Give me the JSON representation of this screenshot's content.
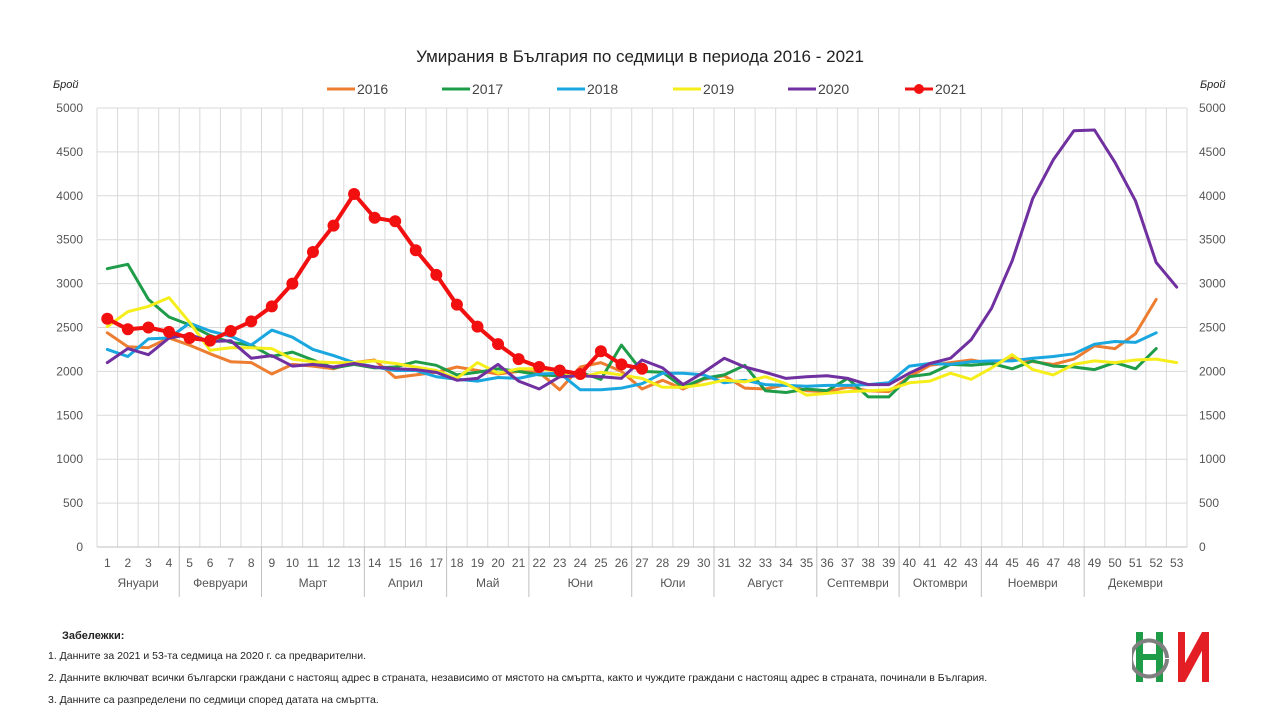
{
  "chart_data": {
    "type": "line",
    "title": "Умирания в България по седмици в периода 2016 - 2021",
    "ylabel_left": "Брой",
    "ylabel_right": "Брой",
    "ylim": [
      0,
      5000
    ],
    "yticks": [
      0,
      500,
      1000,
      1500,
      2000,
      2500,
      3000,
      3500,
      4000,
      4500,
      5000
    ],
    "x": [
      1,
      2,
      3,
      4,
      5,
      6,
      7,
      8,
      9,
      10,
      11,
      12,
      13,
      14,
      15,
      16,
      17,
      18,
      19,
      20,
      21,
      22,
      23,
      24,
      25,
      26,
      27,
      28,
      29,
      30,
      31,
      32,
      33,
      34,
      35,
      36,
      37,
      38,
      39,
      40,
      41,
      42,
      43,
      44,
      45,
      46,
      47,
      48,
      49,
      50,
      51,
      52,
      53
    ],
    "months": [
      {
        "label": "Януари",
        "from": 1,
        "to": 4
      },
      {
        "label": "Февруари",
        "from": 5,
        "to": 8
      },
      {
        "label": "Март",
        "from": 9,
        "to": 13
      },
      {
        "label": "Април",
        "from": 14,
        "to": 17
      },
      {
        "label": "Май",
        "from": 18,
        "to": 21
      },
      {
        "label": "Юни",
        "from": 22,
        "to": 26
      },
      {
        "label": "Юли",
        "from": 27,
        "to": 30
      },
      {
        "label": "Август",
        "from": 31,
        "to": 35
      },
      {
        "label": "Септември",
        "from": 36,
        "to": 39
      },
      {
        "label": "Октомври",
        "from": 40,
        "to": 43
      },
      {
        "label": "Ноември",
        "from": 44,
        "to": 48
      },
      {
        "label": "Декември",
        "from": 49,
        "to": 53
      }
    ],
    "grid": true,
    "legend_position": "top",
    "series": [
      {
        "name": "2016",
        "color": "#ED7D31",
        "markers": false,
        "values": [
          2440,
          2280,
          2270,
          2380,
          2300,
          2200,
          2110,
          2100,
          1970,
          2080,
          2060,
          2030,
          2100,
          2130,
          1930,
          1960,
          1990,
          2050,
          2010,
          1970,
          2000,
          1990,
          1790,
          2050,
          2100,
          2000,
          1800,
          1900,
          1800,
          1910,
          1950,
          1810,
          1800,
          1850,
          1780,
          1770,
          1820,
          1780,
          1770,
          1940,
          2070,
          2100,
          2130,
          2090,
          2150,
          2110,
          2080,
          2140,
          2290,
          2260,
          2430,
          2820,
          null
        ]
      },
      {
        "name": "2017",
        "color": "#1E9C48",
        "markers": false,
        "values": [
          3170,
          3220,
          2820,
          2620,
          2530,
          2410,
          2330,
          2300,
          2170,
          2220,
          2130,
          2040,
          2080,
          2040,
          2050,
          2110,
          2070,
          1960,
          1990,
          2030,
          2000,
          1960,
          1950,
          1990,
          1910,
          2300,
          2000,
          1990,
          1820,
          1920,
          1960,
          2070,
          1780,
          1760,
          1800,
          1780,
          1920,
          1710,
          1710,
          1940,
          1970,
          2080,
          2070,
          2090,
          2030,
          2120,
          2060,
          2050,
          2020,
          2100,
          2030,
          2260,
          null
        ]
      },
      {
        "name": "2018",
        "color": "#1AA7E0",
        "markers": false,
        "values": [
          2250,
          2170,
          2370,
          2380,
          2550,
          2460,
          2400,
          2300,
          2470,
          2390,
          2250,
          2180,
          2100,
          2050,
          2010,
          2010,
          1940,
          1910,
          1890,
          1930,
          1920,
          1970,
          1980,
          1790,
          1790,
          1810,
          1860,
          1980,
          1980,
          1960,
          1870,
          1900,
          1850,
          1840,
          1830,
          1840,
          1840,
          1850,
          1870,
          2060,
          2090,
          2080,
          2110,
          2120,
          2120,
          2150,
          2170,
          2200,
          2310,
          2340,
          2330,
          2440,
          null
        ]
      },
      {
        "name": "2019",
        "color": "#F5EE1A",
        "markers": false,
        "values": [
          2510,
          2680,
          2740,
          2840,
          2560,
          2240,
          2270,
          2270,
          2260,
          2140,
          2110,
          2100,
          2100,
          2120,
          2090,
          2050,
          2010,
          1920,
          2100,
          1980,
          2030,
          2030,
          2000,
          1930,
          1990,
          1960,
          1920,
          1820,
          1820,
          1850,
          1900,
          1880,
          1940,
          1860,
          1730,
          1750,
          1770,
          1780,
          1790,
          1870,
          1890,
          1980,
          1910,
          2040,
          2190,
          2020,
          1960,
          2080,
          2120,
          2100,
          2130,
          2140,
          2100
        ]
      },
      {
        "name": "2020",
        "color": "#7030A0",
        "markers": false,
        "values": [
          2100,
          2260,
          2190,
          2380,
          2420,
          2340,
          2350,
          2150,
          2180,
          2060,
          2080,
          2050,
          2090,
          2050,
          2030,
          2020,
          1990,
          1900,
          1920,
          2080,
          1890,
          1800,
          1940,
          1950,
          1940,
          1920,
          2130,
          2040,
          1850,
          1990,
          2150,
          2050,
          1990,
          1920,
          1940,
          1950,
          1920,
          1850,
          1850,
          1980,
          2090,
          2150,
          2360,
          2720,
          3260,
          3970,
          4410,
          4740,
          4750,
          4380,
          3940,
          3240,
          2960
        ]
      },
      {
        "name": "2021",
        "color": "#F20F0F",
        "markers": true,
        "values": [
          2600,
          2480,
          2500,
          2450,
          2380,
          2350,
          2460,
          2570,
          2740,
          3000,
          3360,
          3660,
          4020,
          3750,
          3710,
          3380,
          3100,
          2760,
          2510,
          2310,
          2140,
          2050,
          2010,
          1970,
          2230,
          2080,
          2030,
          null,
          null,
          null,
          null,
          null,
          null,
          null,
          null,
          null,
          null,
          null,
          null,
          null,
          null,
          null,
          null,
          null,
          null,
          null,
          null,
          null,
          null,
          null,
          null,
          null,
          null
        ]
      }
    ]
  },
  "notes": {
    "heading": "Забележки:",
    "items": [
      "1. Данните за 2021 и 53-та седмица на 2020 г. са предварителни.",
      "2. Данните включват всички български граждани с настоящ адрес в страната, независимо от мястото на смъртта, както и чуждите граждани с настоящ адрес в страната, починали в България.",
      "3. Данните са разпределени по седмици според датата на смъртта."
    ]
  },
  "logo": {
    "icon": "nsi-logo-icon",
    "text": "НСИ",
    "color_green": "#1E9C48",
    "color_red": "#E31E24"
  }
}
